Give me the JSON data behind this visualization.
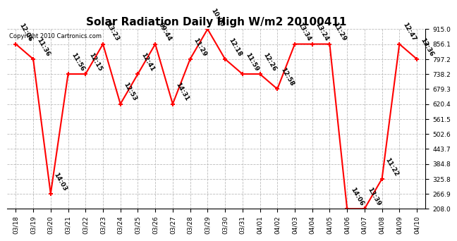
{
  "title": "Solar Radiation Daily High W/m2 20100411",
  "copyright": "Copyright 2010 Cartronics.com",
  "dates": [
    "03/18",
    "03/19",
    "03/20",
    "03/21",
    "03/22",
    "03/23",
    "03/24",
    "03/25",
    "03/26",
    "03/27",
    "03/28",
    "03/29",
    "03/30",
    "03/31",
    "04/01",
    "04/02",
    "04/03",
    "04/04",
    "04/05",
    "04/06",
    "04/07",
    "04/08",
    "04/09",
    "04/10"
  ],
  "values": [
    856.1,
    797.2,
    266.9,
    738.2,
    738.2,
    856.1,
    620.4,
    738.2,
    856.1,
    620.4,
    797.2,
    915.0,
    797.2,
    738.2,
    738.2,
    679.3,
    856.1,
    856.1,
    856.1,
    208.0,
    208.0,
    325.8,
    856.1,
    797.2
  ],
  "times": [
    "12:06",
    "11:36",
    "14:03",
    "11:56",
    "12:15",
    "13:23",
    "12:53",
    "12:41",
    "09:44",
    "14:31",
    "11:29",
    "10:00",
    "12:18",
    "11:59",
    "12:26",
    "12:58",
    "13:34",
    "13:24",
    "11:29",
    "14:06",
    "13:39",
    "11:22",
    "12:47",
    "13:36"
  ],
  "ylim_min": 208.0,
  "ylim_max": 915.0,
  "yticks": [
    208.0,
    266.9,
    325.8,
    384.8,
    443.7,
    502.6,
    561.5,
    620.4,
    679.3,
    738.2,
    797.2,
    856.1,
    915.0
  ],
  "line_color": "red",
  "bg_color": "white",
  "grid_color": "#bbbbbb",
  "title_fontsize": 11,
  "annot_fontsize": 6.5,
  "tick_fontsize": 6.5,
  "copyright_fontsize": 6
}
